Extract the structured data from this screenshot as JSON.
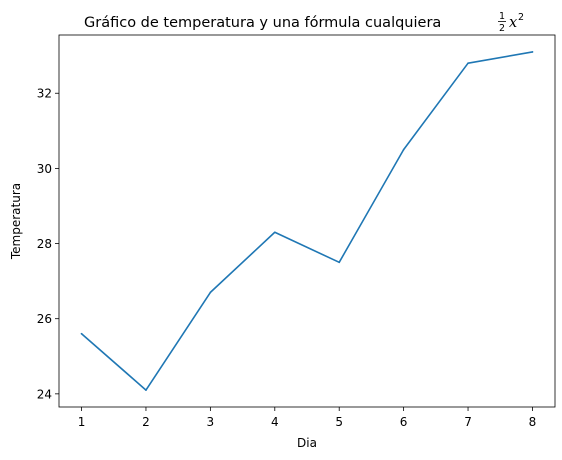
{
  "chart_data": {
    "type": "line",
    "title_prefix": "Gráfico de temperatura y una fórmula cualquiera ",
    "title_formula": {
      "numerator": "1",
      "denominator": "2",
      "variable": "x",
      "exponent": "2"
    },
    "xlabel": "Dia",
    "ylabel": "Temperatura",
    "x": [
      1,
      2,
      3,
      4,
      5,
      6,
      7,
      8
    ],
    "series": [
      {
        "name": "Temperatura",
        "values": [
          25.6,
          24.1,
          26.7,
          28.3,
          27.5,
          30.5,
          32.8,
          33.1
        ],
        "color": "#1f77b4"
      }
    ],
    "xticks": [
      1,
      2,
      3,
      4,
      5,
      6,
      7,
      8
    ],
    "yticks": [
      24,
      26,
      28,
      30,
      32
    ],
    "xlim": [
      0.65,
      8.35
    ],
    "ylim": [
      23.65,
      33.55
    ],
    "grid": false
  }
}
